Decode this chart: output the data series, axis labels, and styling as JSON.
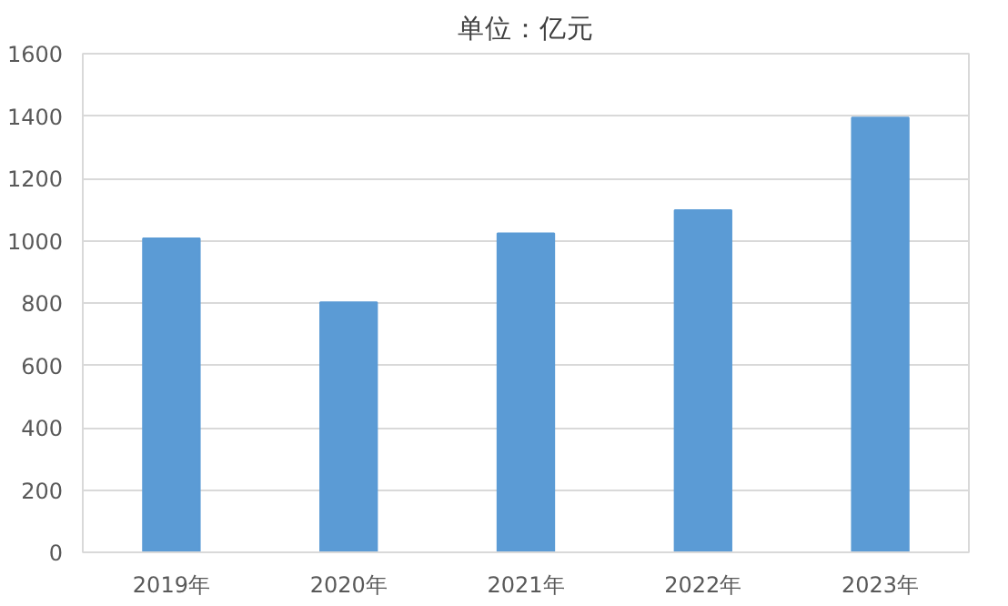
{
  "chart_data": {
    "type": "bar",
    "title": "单位：亿元",
    "categories": [
      "2019年",
      "2020年",
      "2021年",
      "2022年",
      "2023年"
    ],
    "values": [
      1007,
      802,
      1023,
      1098,
      1395
    ],
    "color": "#5b9bd5",
    "ylim": [
      0,
      1600
    ],
    "yticks": [
      0,
      200,
      400,
      600,
      800,
      1000,
      1200,
      1400,
      1600
    ],
    "grid": "y"
  }
}
